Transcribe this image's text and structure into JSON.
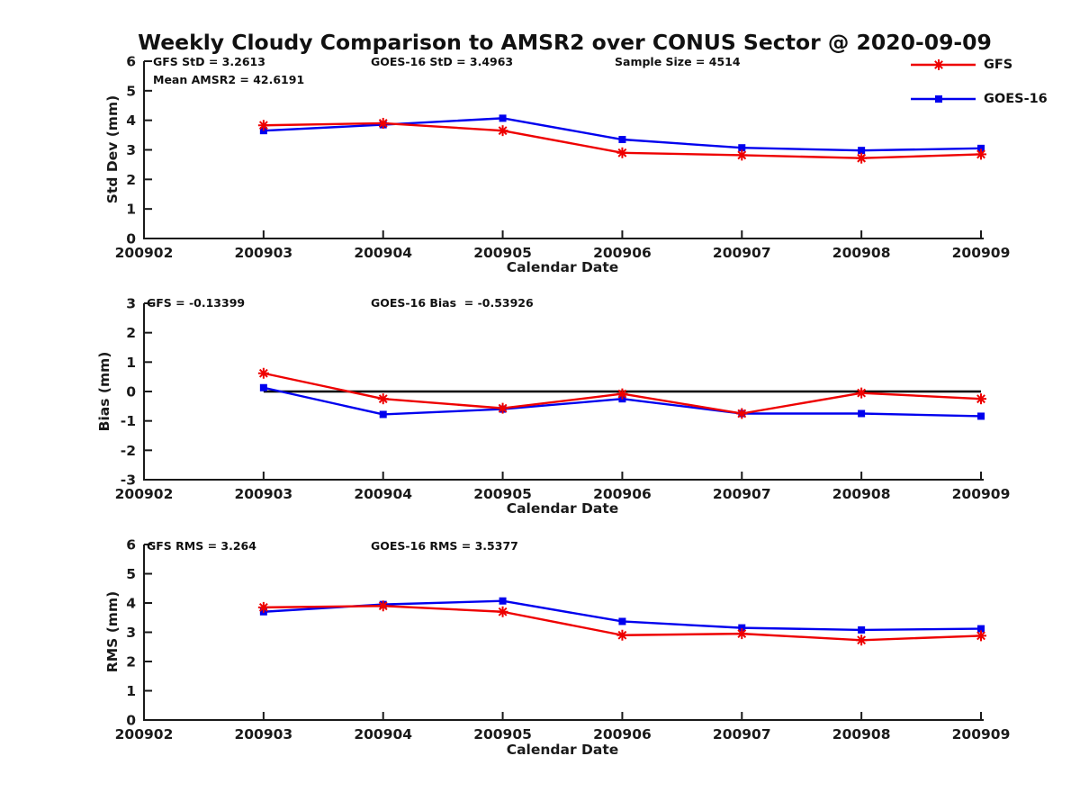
{
  "page": {
    "title": "Weekly Cloudy Comparison to AMSR2 over CONUS Sector @ 2020-09-09"
  },
  "colors": {
    "gfs": "#ee0000",
    "goes16": "#0000ee",
    "axis": "#1a1a1a",
    "zero_line": "#000000",
    "background": "#ffffff"
  },
  "legend": {
    "items": [
      {
        "label": "GFS",
        "color": "#ee0000",
        "marker": "asterisk"
      },
      {
        "label": "GOES-16",
        "color": "#0000ee",
        "marker": "square"
      }
    ]
  },
  "chart_data": [
    {
      "id": "stddev",
      "type": "line",
      "ylabel": "Std Dev (mm)",
      "xlabel": "Calendar Date",
      "ylim": [
        0,
        6
      ],
      "yticks": [
        0,
        1,
        2,
        3,
        4,
        5,
        6
      ],
      "xticks": [
        "200902",
        "200903",
        "200904",
        "200905",
        "200906",
        "200907",
        "200908",
        "200909"
      ],
      "x": [
        "200903",
        "200904",
        "200905",
        "200906",
        "200907",
        "200908",
        "200909"
      ],
      "series": [
        {
          "name": "GOES-16",
          "color": "#0000ee",
          "marker": "square",
          "values": [
            3.65,
            3.85,
            4.07,
            3.35,
            3.07,
            2.98,
            3.05
          ]
        },
        {
          "name": "GFS",
          "color": "#ee0000",
          "marker": "asterisk",
          "values": [
            3.83,
            3.9,
            3.65,
            2.9,
            2.82,
            2.72,
            2.85
          ]
        }
      ],
      "annotations": [
        "GFS StD = 3.2613",
        "Mean AMSR2 = 42.6191",
        "GOES-16 StD = 3.4963",
        "Sample Size = 4514"
      ],
      "grid": false,
      "legend_position": "top-right"
    },
    {
      "id": "bias",
      "type": "line",
      "ylabel": "Bias (mm)",
      "xlabel": "Calendar Date",
      "ylim": [
        -3,
        3
      ],
      "yticks": [
        -3,
        -2,
        -1,
        0,
        1,
        2,
        3
      ],
      "xticks": [
        "200902",
        "200903",
        "200904",
        "200905",
        "200906",
        "200907",
        "200908",
        "200909"
      ],
      "x": [
        "200903",
        "200904",
        "200905",
        "200906",
        "200907",
        "200908",
        "200909"
      ],
      "zero_line": true,
      "series": [
        {
          "name": "GOES-16",
          "color": "#0000ee",
          "marker": "square",
          "values": [
            0.13,
            -0.78,
            -0.6,
            -0.25,
            -0.75,
            -0.75,
            -0.84
          ]
        },
        {
          "name": "GFS",
          "color": "#ee0000",
          "marker": "asterisk",
          "values": [
            0.62,
            -0.25,
            -0.57,
            -0.08,
            -0.75,
            -0.05,
            -0.25
          ]
        }
      ],
      "annotations": [
        "GFS = -0.13399",
        "GOES-16 Bias  = -0.53926"
      ],
      "grid": false
    },
    {
      "id": "rms",
      "type": "line",
      "ylabel": "RMS (mm)",
      "xlabel": "Calendar Date",
      "ylim": [
        0,
        6
      ],
      "yticks": [
        0,
        1,
        2,
        3,
        4,
        5,
        6
      ],
      "xticks": [
        "200902",
        "200903",
        "200904",
        "200905",
        "200906",
        "200907",
        "200908",
        "200909"
      ],
      "x": [
        "200903",
        "200904",
        "200905",
        "200906",
        "200907",
        "200908",
        "200909"
      ],
      "series": [
        {
          "name": "GOES-16",
          "color": "#0000ee",
          "marker": "square",
          "values": [
            3.7,
            3.95,
            4.07,
            3.37,
            3.15,
            3.08,
            3.12
          ]
        },
        {
          "name": "GFS",
          "color": "#ee0000",
          "marker": "asterisk",
          "values": [
            3.85,
            3.9,
            3.7,
            2.9,
            2.95,
            2.73,
            2.88
          ]
        }
      ],
      "annotations": [
        "GFS RMS = 3.264",
        "GOES-16 RMS = 3.5377"
      ],
      "grid": false
    }
  ]
}
